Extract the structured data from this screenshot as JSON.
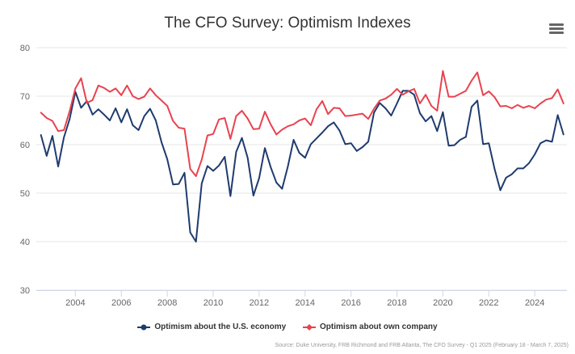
{
  "chart_data": {
    "type": "line",
    "title": "The CFO Survey: Optimism Indexes",
    "xlabel": "",
    "ylabel": "",
    "ylim": [
      30,
      80
    ],
    "yticks": [
      30,
      40,
      50,
      60,
      70,
      80
    ],
    "xlim": [
      2002.3,
      2025.4
    ],
    "xticks": [
      "2004",
      "2006",
      "2008",
      "2010",
      "2012",
      "2014",
      "2016",
      "2018",
      "2020",
      "2022",
      "2024"
    ],
    "grid": "horizontal",
    "legend_position": "bottom",
    "series": [
      {
        "name": "Optimism about the U.S. economy",
        "color": "#1f3b6e",
        "points": [
          [
            2002.5,
            62.0
          ],
          [
            2002.75,
            57.7
          ],
          [
            2003.0,
            61.8
          ],
          [
            2003.25,
            55.5
          ],
          [
            2003.5,
            61.5
          ],
          [
            2003.75,
            65.3
          ],
          [
            2004.0,
            70.9
          ],
          [
            2004.25,
            67.6
          ],
          [
            2004.5,
            69.0
          ],
          [
            2004.75,
            66.2
          ],
          [
            2005.0,
            67.3
          ],
          [
            2005.25,
            66.2
          ],
          [
            2005.5,
            65.0
          ],
          [
            2005.75,
            67.5
          ],
          [
            2006.0,
            64.6
          ],
          [
            2006.25,
            67.3
          ],
          [
            2006.5,
            64.0
          ],
          [
            2006.75,
            63.0
          ],
          [
            2007.0,
            65.9
          ],
          [
            2007.25,
            67.4
          ],
          [
            2007.5,
            65.0
          ],
          [
            2007.75,
            60.5
          ],
          [
            2008.0,
            57.0
          ],
          [
            2008.25,
            51.8
          ],
          [
            2008.5,
            51.9
          ],
          [
            2008.75,
            54.2
          ],
          [
            2009.0,
            41.9
          ],
          [
            2009.25,
            40.0
          ],
          [
            2009.5,
            52.0
          ],
          [
            2009.75,
            55.6
          ],
          [
            2010.0,
            54.6
          ],
          [
            2010.25,
            55.7
          ],
          [
            2010.5,
            57.5
          ],
          [
            2010.75,
            49.4
          ],
          [
            2011.0,
            58.5
          ],
          [
            2011.25,
            61.4
          ],
          [
            2011.5,
            57.3
          ],
          [
            2011.75,
            49.5
          ],
          [
            2012.0,
            53.1
          ],
          [
            2012.25,
            59.3
          ],
          [
            2012.5,
            55.4
          ],
          [
            2012.75,
            52.2
          ],
          [
            2013.0,
            50.9
          ],
          [
            2013.25,
            55.5
          ],
          [
            2013.5,
            61.0
          ],
          [
            2013.75,
            58.3
          ],
          [
            2014.0,
            57.3
          ],
          [
            2014.25,
            60.1
          ],
          [
            2014.5,
            61.3
          ],
          [
            2014.75,
            62.5
          ],
          [
            2015.0,
            63.8
          ],
          [
            2015.25,
            64.6
          ],
          [
            2015.5,
            62.9
          ],
          [
            2015.75,
            60.1
          ],
          [
            2016.0,
            60.3
          ],
          [
            2016.25,
            58.7
          ],
          [
            2016.5,
            59.5
          ],
          [
            2016.75,
            60.6
          ],
          [
            2017.0,
            66.6
          ],
          [
            2017.25,
            68.6
          ],
          [
            2017.5,
            67.5
          ],
          [
            2017.75,
            66.0
          ],
          [
            2018.0,
            68.5
          ],
          [
            2018.25,
            71.1
          ],
          [
            2018.5,
            71.1
          ],
          [
            2018.75,
            70.3
          ],
          [
            2019.0,
            66.5
          ],
          [
            2019.25,
            64.8
          ],
          [
            2019.5,
            65.9
          ],
          [
            2019.75,
            62.8
          ],
          [
            2020.0,
            66.7
          ],
          [
            2020.25,
            59.8
          ],
          [
            2020.5,
            59.9
          ],
          [
            2020.75,
            61.0
          ],
          [
            2021.0,
            61.6
          ],
          [
            2021.25,
            67.8
          ],
          [
            2021.5,
            69.1
          ],
          [
            2021.75,
            60.1
          ],
          [
            2022.0,
            60.3
          ],
          [
            2022.25,
            55.0
          ],
          [
            2022.5,
            50.6
          ],
          [
            2022.75,
            53.2
          ],
          [
            2023.0,
            53.9
          ],
          [
            2023.25,
            55.1
          ],
          [
            2023.5,
            55.1
          ],
          [
            2023.75,
            56.2
          ],
          [
            2024.0,
            58.0
          ],
          [
            2024.25,
            60.3
          ],
          [
            2024.5,
            60.9
          ],
          [
            2024.75,
            60.6
          ],
          [
            2025.0,
            66.1
          ],
          [
            2025.25,
            62.1
          ]
        ]
      },
      {
        "name": "Optimism about own company",
        "color": "#e8434f",
        "points": [
          [
            2002.5,
            66.6
          ],
          [
            2002.75,
            65.5
          ],
          [
            2003.0,
            64.9
          ],
          [
            2003.25,
            62.8
          ],
          [
            2003.5,
            63.0
          ],
          [
            2003.75,
            66.9
          ],
          [
            2004.0,
            71.6
          ],
          [
            2004.25,
            73.7
          ],
          [
            2004.5,
            68.6
          ],
          [
            2004.75,
            69.2
          ],
          [
            2005.0,
            72.2
          ],
          [
            2005.25,
            71.7
          ],
          [
            2005.5,
            70.9
          ],
          [
            2005.75,
            71.6
          ],
          [
            2006.0,
            70.2
          ],
          [
            2006.25,
            72.2
          ],
          [
            2006.5,
            70.0
          ],
          [
            2006.75,
            69.4
          ],
          [
            2007.0,
            69.9
          ],
          [
            2007.25,
            71.6
          ],
          [
            2007.5,
            70.2
          ],
          [
            2007.75,
            69.1
          ],
          [
            2008.0,
            68.0
          ],
          [
            2008.25,
            64.9
          ],
          [
            2008.5,
            63.5
          ],
          [
            2008.75,
            63.3
          ],
          [
            2009.0,
            55.0
          ],
          [
            2009.25,
            53.5
          ],
          [
            2009.5,
            56.9
          ],
          [
            2009.75,
            61.9
          ],
          [
            2010.0,
            62.2
          ],
          [
            2010.25,
            65.2
          ],
          [
            2010.5,
            65.5
          ],
          [
            2010.75,
            61.2
          ],
          [
            2011.0,
            65.9
          ],
          [
            2011.25,
            67.0
          ],
          [
            2011.5,
            65.4
          ],
          [
            2011.75,
            63.2
          ],
          [
            2012.0,
            63.3
          ],
          [
            2012.25,
            66.8
          ],
          [
            2012.5,
            64.2
          ],
          [
            2012.75,
            62.1
          ],
          [
            2013.0,
            63.1
          ],
          [
            2013.25,
            63.8
          ],
          [
            2013.5,
            64.2
          ],
          [
            2013.75,
            65.0
          ],
          [
            2014.0,
            65.4
          ],
          [
            2014.25,
            64.0
          ],
          [
            2014.5,
            67.3
          ],
          [
            2014.75,
            69.0
          ],
          [
            2015.0,
            66.3
          ],
          [
            2015.25,
            67.6
          ],
          [
            2015.5,
            67.5
          ],
          [
            2015.75,
            65.9
          ],
          [
            2016.0,
            66.0
          ],
          [
            2016.25,
            66.2
          ],
          [
            2016.5,
            66.4
          ],
          [
            2016.75,
            65.3
          ],
          [
            2017.0,
            67.4
          ],
          [
            2017.25,
            69.1
          ],
          [
            2017.5,
            69.5
          ],
          [
            2017.75,
            70.3
          ],
          [
            2018.0,
            71.5
          ],
          [
            2018.25,
            70.3
          ],
          [
            2018.5,
            71.0
          ],
          [
            2018.75,
            71.5
          ],
          [
            2019.0,
            68.5
          ],
          [
            2019.25,
            70.3
          ],
          [
            2019.5,
            68.0
          ],
          [
            2019.75,
            67.0
          ],
          [
            2020.0,
            75.2
          ],
          [
            2020.25,
            69.9
          ],
          [
            2020.5,
            69.9
          ],
          [
            2020.75,
            70.5
          ],
          [
            2021.0,
            71.1
          ],
          [
            2021.25,
            73.2
          ],
          [
            2021.5,
            74.9
          ],
          [
            2021.75,
            70.2
          ],
          [
            2022.0,
            71.0
          ],
          [
            2022.25,
            69.8
          ],
          [
            2022.5,
            67.9
          ],
          [
            2022.75,
            68.0
          ],
          [
            2023.0,
            67.5
          ],
          [
            2023.25,
            68.2
          ],
          [
            2023.5,
            67.6
          ],
          [
            2023.75,
            68.0
          ],
          [
            2024.0,
            67.5
          ],
          [
            2024.25,
            68.5
          ],
          [
            2024.5,
            69.3
          ],
          [
            2024.75,
            69.6
          ],
          [
            2025.0,
            71.4
          ],
          [
            2025.25,
            68.5
          ]
        ]
      }
    ]
  },
  "source": "Source: Duke University, FRB Richmond and FRB Atlanta, The CFO Survey - Q1 2025 (February 18 - March 7, 2025)",
  "menu_icon": "hamburger-menu-icon"
}
